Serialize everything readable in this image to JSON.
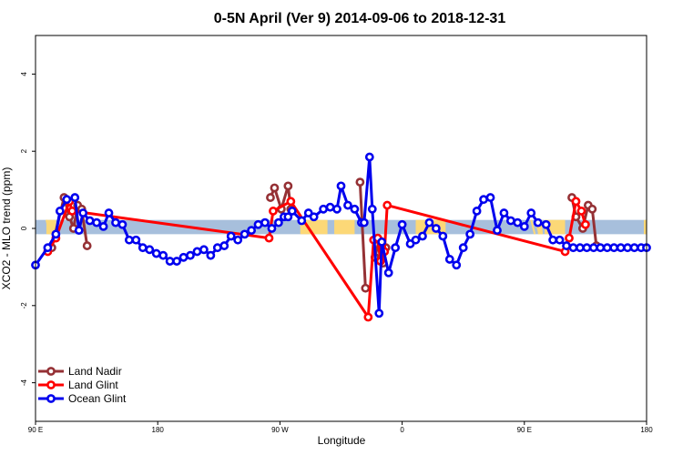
{
  "chart_data": {
    "type": "line",
    "title": "0-5N April (Ver 9)   2014-09-06 to 2018-12-31",
    "xlabel": "Longitude",
    "ylabel": "XCO2 - MLO trend (ppm)",
    "xlim": [
      -90,
      360
    ],
    "ylim": [
      -5,
      5
    ],
    "x_ticks": [
      {
        "value": -90,
        "label": "90 E"
      },
      {
        "value": 0,
        "label": "180"
      },
      {
        "value": 90,
        "label": "90 W"
      },
      {
        "value": 180,
        "label": "0"
      },
      {
        "value": 270,
        "label": "90 E"
      },
      {
        "value": 360,
        "label": "180"
      }
    ],
    "y_ticks": [
      {
        "value": -4,
        "label": "-4"
      },
      {
        "value": -2,
        "label": "-2"
      },
      {
        "value": 0,
        "label": "0"
      },
      {
        "value": 2,
        "label": "2"
      },
      {
        "value": 4,
        "label": "4"
      }
    ],
    "legend_position": "bottom-left",
    "surface_band": {
      "y_range": [
        -0.15,
        0.22
      ],
      "ocean_color": "#a7bfdc",
      "land_color": "#fcd877",
      "land_segments": [
        [
          -82,
          -75
        ],
        [
          105,
          125
        ],
        [
          130,
          145
        ],
        [
          190,
          212
        ],
        [
          280,
          283
        ],
        [
          285,
          300
        ],
        [
          358,
          360
        ]
      ],
      "hatch_segments": [
        [
          -82,
          -77
        ],
        [
          275,
          283
        ]
      ]
    },
    "series": [
      {
        "name": "Land Nadir",
        "color": "#953135",
        "x": [
          -78,
          -69,
          -65,
          -62,
          -59,
          -56,
          -52,
          149,
          153,
          166,
          172,
          175,
          187,
          195,
          -78,
          -69,
          -65,
          -62,
          -59,
          -56,
          -52
        ],
        "y": [
          -0.5,
          0.8,
          0.3,
          0.0,
          0.6,
          0.5,
          -0.45,
          1.2,
          -1.55,
          -1.1,
          0.5,
          0.4,
          0.1,
          0.3,
          -0.5,
          0.8,
          0.3,
          0.0,
          0.6,
          0.5,
          -0.45
        ],
        "segments": [
          {
            "x": [
              -78,
              -69,
              -65,
              -62,
              -59,
              -56,
              -52
            ],
            "y": [
              -0.5,
              0.8,
              0.3,
              0.0,
              0.6,
              0.5,
              -0.45
            ]
          },
          {
            "x": [
              83,
              86,
              91,
              96,
              98
            ],
            "y": [
              0.8,
              1.05,
              0.5,
              1.1,
              0.5
            ]
          },
          {
            "x": [
              149,
              153
            ],
            "y": [
              1.2,
              -1.55
            ]
          },
          {
            "x": [
              160,
              163,
              166,
              168
            ],
            "y": [
              -0.75,
              -0.3,
              -0.9,
              -0.5
            ]
          },
          {
            "x": [
              305,
              308,
              313,
              317,
              320,
              323
            ],
            "y": [
              0.8,
              0.3,
              0.0,
              0.6,
              0.5,
              -0.45
            ]
          }
        ]
      },
      {
        "name": "Land Glint",
        "color": "#ff0000",
        "x": [
          -81,
          -75,
          -65,
          -63,
          82,
          85,
          98,
          155,
          159,
          162,
          164,
          167,
          169,
          300,
          303,
          308,
          312,
          315
        ],
        "y": [
          -0.6,
          -0.25,
          0.7,
          0.45,
          -0.25,
          0.45,
          0.7,
          -2.3,
          -0.3,
          -0.25,
          -0.85,
          -0.6,
          0.6,
          -0.6,
          -0.25,
          0.7,
          0.45,
          0.1
        ]
      },
      {
        "name": "Ocean Glint",
        "color": "#0000ee",
        "x": [
          -90,
          -81,
          -75,
          -72,
          -67,
          -61,
          -58,
          -55,
          -50,
          -45,
          -40,
          -36,
          -31,
          -26,
          -21,
          -16,
          -11,
          -6,
          -1,
          4,
          9,
          14,
          19,
          24,
          29,
          34,
          39,
          44,
          49,
          54,
          59,
          64,
          69,
          74,
          79,
          84,
          89,
          93,
          96,
          99,
          106,
          111,
          115,
          122,
          127,
          132,
          135,
          140,
          145,
          150,
          152,
          156,
          158,
          163,
          165,
          170,
          175,
          180,
          186,
          190,
          195,
          200,
          205,
          210,
          215,
          220,
          225,
          230,
          235,
          240,
          245,
          250,
          255,
          260,
          265,
          270,
          275,
          280,
          286,
          291,
          296,
          301,
          306,
          311,
          316,
          321,
          326,
          331,
          336,
          341,
          346,
          351,
          356,
          360
        ],
        "y": [
          -0.95,
          -0.5,
          -0.15,
          0.45,
          0.75,
          0.8,
          -0.05,
          0.4,
          0.2,
          0.15,
          0.05,
          0.4,
          0.15,
          0.1,
          -0.3,
          -0.3,
          -0.5,
          -0.55,
          -0.65,
          -0.7,
          -0.85,
          -0.85,
          -0.75,
          -0.7,
          -0.6,
          -0.55,
          -0.7,
          -0.5,
          -0.45,
          -0.2,
          -0.3,
          -0.15,
          -0.05,
          0.1,
          0.15,
          0.0,
          0.15,
          0.3,
          0.3,
          0.45,
          0.2,
          0.4,
          0.3,
          0.5,
          0.55,
          0.5,
          1.1,
          0.6,
          0.5,
          0.15,
          0.15,
          1.85,
          0.5,
          -2.2,
          -0.35,
          -1.15,
          -0.5,
          0.1,
          -0.4,
          -0.3,
          -0.2,
          0.15,
          0.0,
          -0.2,
          -0.8,
          -0.95,
          -0.5,
          -0.15,
          0.45,
          0.75,
          0.8,
          -0.05,
          0.4,
          0.2,
          0.15,
          0.05,
          0.4,
          0.15,
          0.1,
          -0.3,
          -0.3,
          -0.45,
          -0.5,
          -0.5,
          -0.5,
          -0.5,
          -0.5,
          -0.5,
          -0.5,
          -0.5,
          -0.5,
          -0.5,
          -0.5,
          -0.5
        ]
      }
    ]
  }
}
